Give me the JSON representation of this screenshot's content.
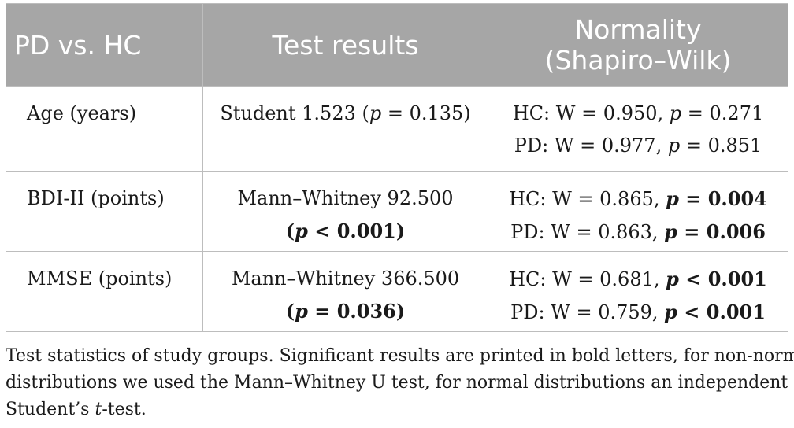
{
  "table": {
    "headers": {
      "col1": "PD vs. HC",
      "col2": "Test results",
      "col3_line1": "Normality",
      "col3_line2": "(Shapiro–Wilk)"
    },
    "rows": [
      {
        "label": "Age (years)",
        "test_line1": "Student 1.523 (p = 0.135)",
        "test_line2": "",
        "normality_hc": "HC: W = 0.950, p = 0.271",
        "normality_pd": "PD: W = 0.977, p = 0.851"
      },
      {
        "label": "BDI-II (points)",
        "test_line1": "Mann–Whitney 92.500",
        "test_line2": "(p < 0.001)",
        "normality_hc": "HC: W = 0.865, p = 0.004",
        "normality_pd": "PD: W = 0.863, p = 0.006"
      },
      {
        "label": "MMSE (points)",
        "test_line1": "Mann–Whitney 366.500",
        "test_line2": "(p = 0.036)",
        "normality_hc": "HC: W = 0.681, p < 0.001",
        "normality_pd": "PD: W = 0.759, p < 0.001"
      }
    ]
  },
  "caption": {
    "line1": "Test statistics of study groups. Significant results are printed in bold letters, for non-normal",
    "line2": "distributions we used the Mann–Whitney U test, for normal distributions an independent",
    "line3": "Student’s t-test."
  },
  "colors": {
    "header_bg": "#a6a6a6",
    "header_text": "#ffffff",
    "border": "#bdbdbd",
    "body_text": "#1a1a1a"
  }
}
